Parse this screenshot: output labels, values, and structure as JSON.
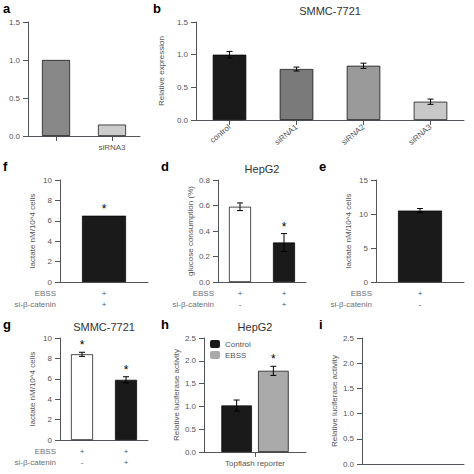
{
  "chart_data": [
    {
      "type": "bar",
      "subtitle": "a",
      "categories": [
        null,
        "siRNA3"
      ],
      "values": [
        1.0,
        0.15
      ],
      "colors": [
        "#888888",
        "#cccccc"
      ],
      "ylim": [
        0,
        1.5
      ],
      "yticks": [
        {
          "value": 0,
          "label": "0.0"
        },
        0.5,
        {
          "value": 1,
          "label": "1.0"
        },
        1.5
      ],
      "grid": false
    },
    {
      "type": "bar",
      "subtitle": "b",
      "title": "SMMC-7721",
      "ylabel": "Relative expression",
      "categories": [
        "control",
        "siRNA1",
        "siRNA2",
        "siRNA3"
      ],
      "values": [
        1.0,
        0.78,
        0.83,
        0.28
      ],
      "errors": [
        0.05,
        0.03,
        0.04,
        0.04
      ],
      "colors": [
        "#1a1a1a",
        "#7a7a7a",
        "#9a9a9a",
        "#c8c8c8"
      ],
      "ylim": [
        0,
        1.5
      ],
      "yticks": [
        {
          "value": 0,
          "label": "0.0"
        },
        0.5,
        {
          "value": 1,
          "label": "1.0"
        },
        1.5
      ],
      "grid": false
    },
    {
      "type": "bar",
      "subtitle": "f",
      "ylabel": "lactate nM/10^4 cells",
      "categories": [
        null
      ],
      "values": [
        6.5
      ],
      "color": "#1a1a1a",
      "ylim": [
        0,
        10
      ],
      "yticks": [
        0,
        2,
        4,
        6,
        8,
        10
      ],
      "grid": false,
      "annotations": [
        {
          "text": "*",
          "category": 0
        },
        {
          "row": "EBSS",
          "cells": [
            "+"
          ]
        },
        {
          "row": "si-β-catenin",
          "cells": [
            "+"
          ]
        }
      ]
    },
    {
      "type": "bar",
      "subtitle": "d",
      "title": "HepG2",
      "ylabel": "glucose consumption (%)",
      "categories": [
        null,
        null
      ],
      "values": [
        0.59,
        0.31
      ],
      "errors": [
        0.03,
        0.07
      ],
      "colors": [
        "#ffffff",
        "#1a1a1a"
      ],
      "ylim": [
        0.0,
        0.8
      ],
      "yticks": [
        {
          "value": 0,
          "label": "0.0"
        },
        0.2,
        0.4,
        0.6,
        0.8
      ],
      "grid": false,
      "annotations": [
        {
          "text": "*",
          "category": 1
        },
        {
          "row": "EBSS",
          "cells": [
            "+",
            "+"
          ]
        },
        {
          "row": "si-β-catenin",
          "cells": [
            "-",
            "+"
          ]
        }
      ]
    },
    {
      "type": "bar",
      "subtitle": "e",
      "ylabel": "lactate nM/10^4 cells",
      "categories": [
        null
      ],
      "values": [
        10.5
      ],
      "errors": [
        0.3
      ],
      "color": "#1a1a1a",
      "ylim": [
        0,
        15
      ],
      "yticks": [
        0,
        5,
        10,
        15
      ],
      "grid": false,
      "annotations": [
        {
          "row": "EBSS",
          "cells": [
            "+"
          ]
        },
        {
          "row": "si-β-catenin",
          "cells": [
            "-"
          ]
        }
      ]
    },
    {
      "type": "bar",
      "subtitle": "g",
      "title": "SMMC-7721",
      "ylabel": "lactate nM/10^4 cells",
      "categories": [
        null,
        null
      ],
      "values": [
        8.4,
        5.9
      ],
      "errors": [
        0.2,
        0.3
      ],
      "colors": [
        "#ffffff",
        "#1a1a1a"
      ],
      "ylim": [
        0,
        10
      ],
      "yticks": [
        0,
        2,
        4,
        6,
        8,
        10
      ],
      "grid": false,
      "annotations": [
        {
          "text": "*",
          "category": 0
        },
        {
          "text": "*",
          "category": 1
        },
        {
          "row": "EBSS",
          "cells": [
            "+",
            "+"
          ]
        },
        {
          "row": "si-β-catenin",
          "cells": [
            "-",
            "+"
          ]
        }
      ]
    },
    {
      "type": "bar",
      "subtitle": "h",
      "title": "HepG2",
      "ylabel": "Relative luciferase activity",
      "categories": [
        "Topflash reporter"
      ],
      "series": [
        {
          "name": "Control",
          "color": "#1a1a1a",
          "values": [
            1.02
          ],
          "errors": [
            0.12
          ]
        },
        {
          "name": "EBSS",
          "color": "#aaaaaa",
          "values": [
            1.78
          ],
          "errors": [
            0.1
          ]
        }
      ],
      "legend": "upper left",
      "ylim": [
        0.0,
        2.5
      ],
      "yticks": [
        {
          "value": 0,
          "label": "0.0"
        },
        0.5,
        {
          "value": 1,
          "label": "1.0"
        },
        1.5,
        {
          "value": 2,
          "label": "2.0"
        },
        2.5
      ],
      "grid": false,
      "annotations": [
        {
          "text": "*",
          "series": "EBSS",
          "category": 0
        }
      ]
    },
    {
      "type": "bar",
      "subtitle": "i",
      "ylabel": "Relative luciferase activity",
      "categories": [],
      "values": [],
      "ylim": [
        0,
        2.5
      ],
      "yticks": [
        {
          "value": 0,
          "label": "0.0"
        },
        0.5,
        {
          "value": 1,
          "label": "1.0"
        },
        1.5,
        {
          "value": 2,
          "label": "2.0"
        },
        2.5
      ],
      "grid": false
    }
  ]
}
